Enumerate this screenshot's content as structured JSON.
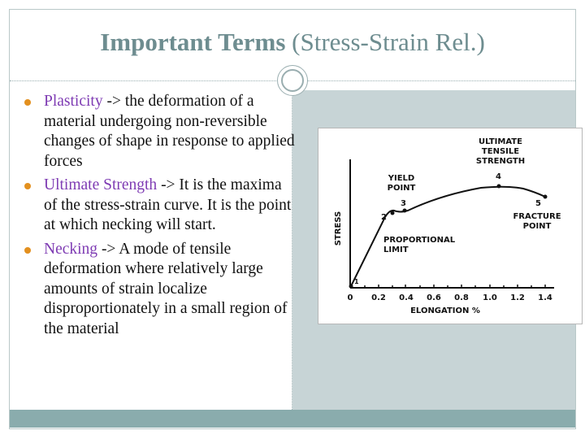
{
  "slide": {
    "title_bold": "Important Terms",
    "title_rest": " (Stress-Strain Rel.)"
  },
  "bullets": [
    {
      "term": "Plasticity",
      "text": " -> the deformation of a material undergoing non-reversible changes of shape in response to applied forces"
    },
    {
      "term": "Ultimate Strength",
      "text": " -> It is the maxima of the stress-strain curve. It is the point at which necking will start."
    },
    {
      "term": "Necking",
      "text": " -> A mode of tensile deformation where relatively large amounts of strain localize disproportionately in a small region of the material"
    }
  ],
  "figure": {
    "y_axis_label": "STRESS",
    "x_axis_label": "ELONGATION  %",
    "x_ticks": [
      "0",
      "0.2",
      "0.4",
      "0.6",
      "0.8",
      "1.0",
      "1.2",
      "1.4"
    ],
    "point_labels": [
      "1",
      "2",
      "3",
      "4",
      "5"
    ],
    "annotations": {
      "uts_line1": "ULTIMATE",
      "uts_line2": "TENSILE",
      "uts_line3": "STRENGTH",
      "yield_line1": "YIELD",
      "yield_line2": "POINT",
      "prop_line1": "PROPORTIONAL",
      "prop_line2": "LIMIT",
      "fracture_line1": "FRACTURE",
      "fracture_line2": "POINT"
    }
  },
  "colors": {
    "title": "#6e8d90",
    "term": "#7e3bb3",
    "bullet": "#e3901f",
    "content_bg": "#c7d4d6",
    "footer": "#8aacad"
  }
}
